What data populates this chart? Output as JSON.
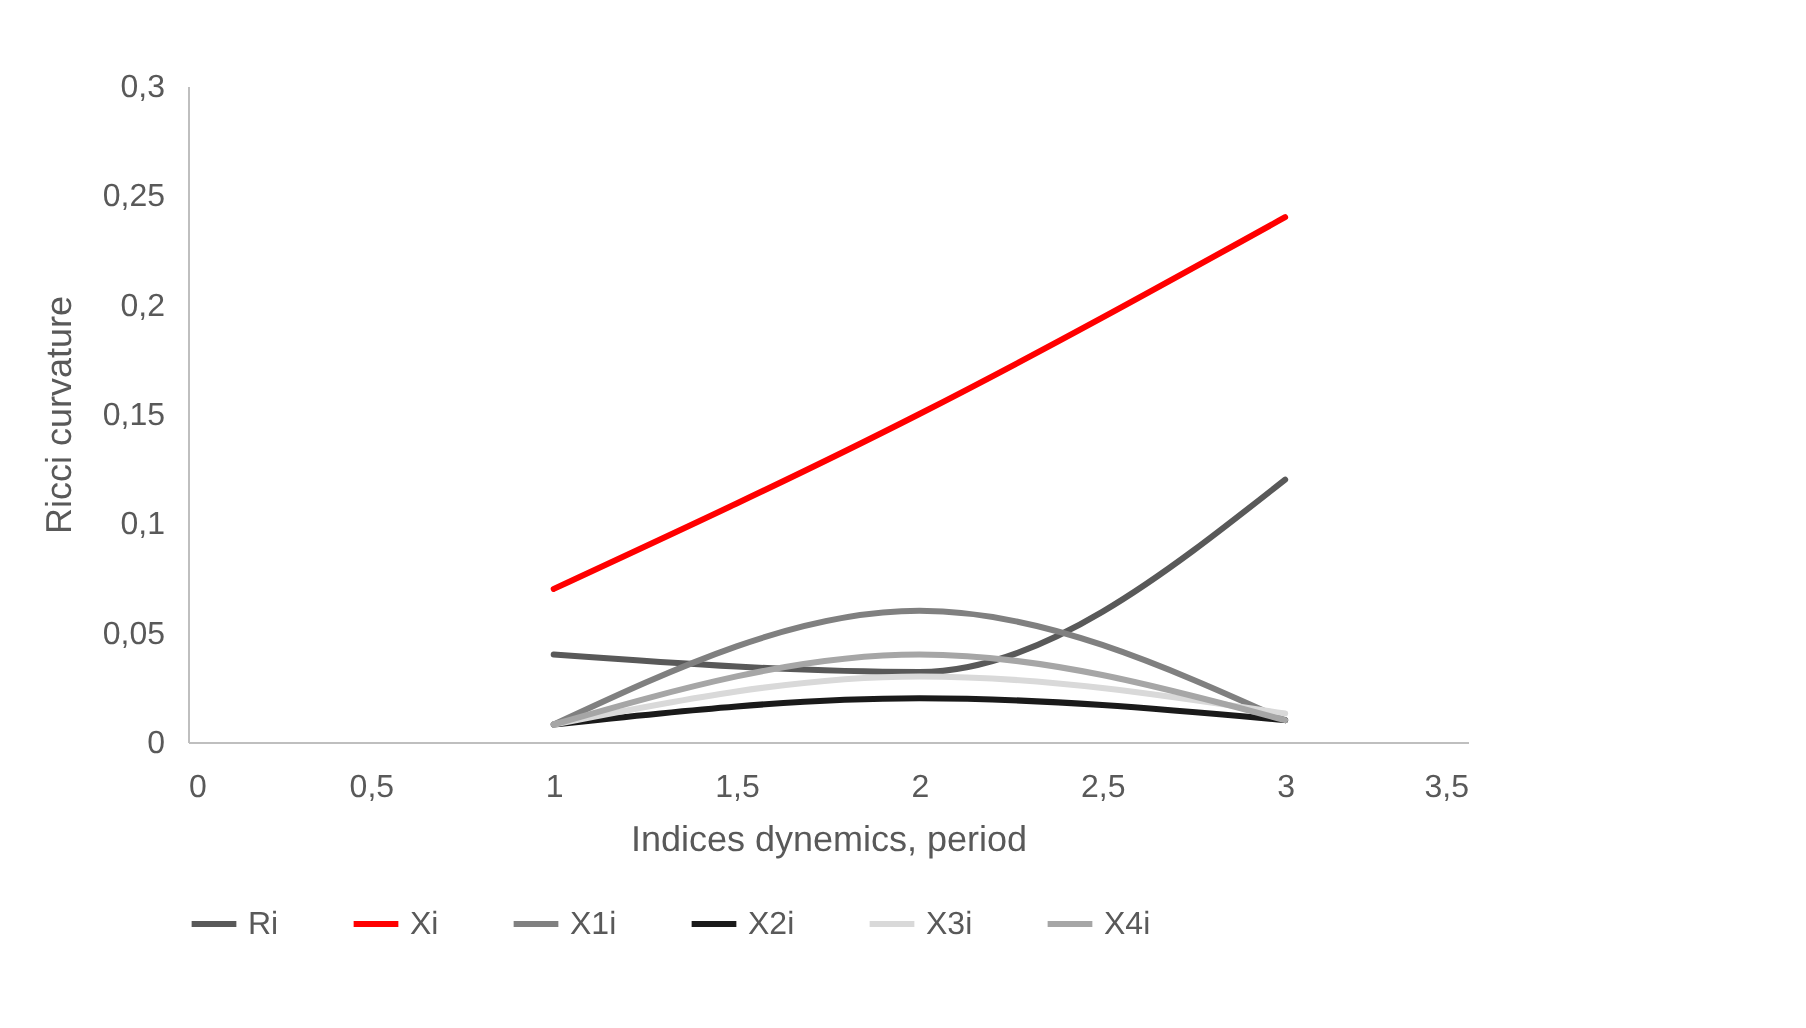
{
  "chart_data": {
    "type": "line",
    "xlabel": "Indices dynemics, period",
    "ylabel": "Ricci curvature",
    "x": [
      1,
      2,
      3
    ],
    "series": [
      {
        "name": "Ri",
        "color": "#595959",
        "values": [
          0.04,
          0.032,
          0.12
        ]
      },
      {
        "name": "Xi",
        "color": "#ff0000",
        "values": [
          0.07,
          0.15,
          0.24
        ]
      },
      {
        "name": "X1i",
        "color": "#808080",
        "values": [
          0.008,
          0.06,
          0.01
        ]
      },
      {
        "name": "X2i",
        "color": "#1a1a1a",
        "values": [
          0.008,
          0.02,
          0.01
        ]
      },
      {
        "name": "X3i",
        "color": "#d9d9d9",
        "values": [
          0.008,
          0.03,
          0.013
        ]
      },
      {
        "name": "X4i",
        "color": "#a6a6a6",
        "values": [
          0.008,
          0.04,
          0.01
        ]
      }
    ],
    "xlim": [
      0,
      3.5
    ],
    "xticks": [
      0,
      {
        "value": 0.5,
        "label": "0,5"
      },
      1,
      {
        "value": 1.5,
        "label": "1,5"
      },
      2,
      {
        "value": 2.5,
        "label": "2,5"
      },
      3,
      {
        "value": 3.5,
        "label": "3,5"
      }
    ],
    "ylim": [
      0,
      0.3
    ],
    "yticks": [
      0,
      {
        "value": 0.05,
        "label": "0,05"
      },
      {
        "value": 0.1,
        "label": "0,1"
      },
      {
        "value": 0.15,
        "label": "0,15"
      },
      {
        "value": 0.2,
        "label": "0,2"
      },
      {
        "value": 0.25,
        "label": "0,25"
      },
      {
        "value": 0.3,
        "label": "0,3"
      }
    ],
    "grid": false,
    "legend": "bottom",
    "marker": "none",
    "line_style": "solid"
  }
}
